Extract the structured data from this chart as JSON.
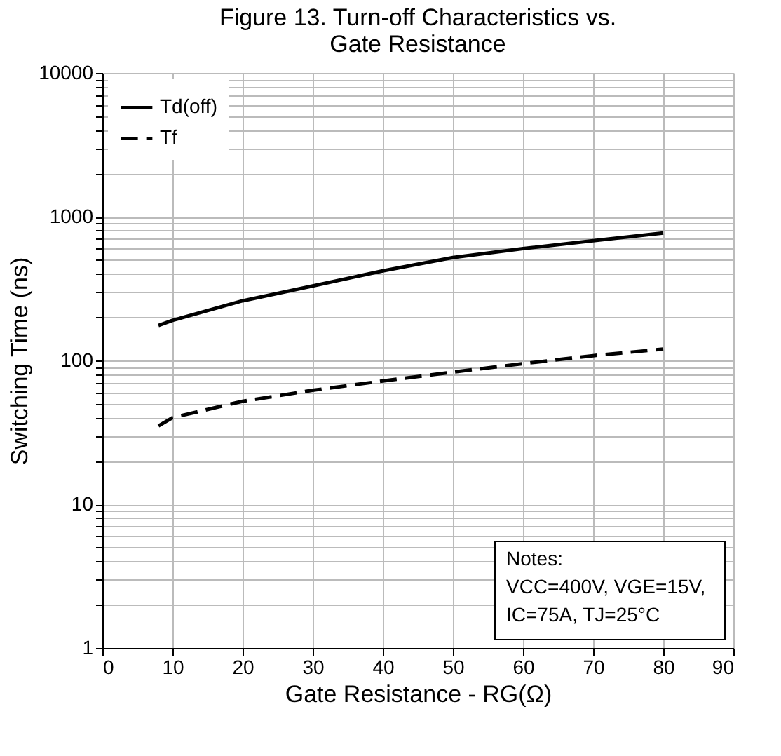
{
  "chart_data": {
    "type": "line",
    "title": "Figure 13. Turn-off Characteristics vs. Gate Resistance",
    "xlabel": "Gate Resistance - RG(Ω)",
    "ylabel": "Switching Time (ns)",
    "x": [
      8,
      10,
      20,
      30,
      40,
      50,
      60,
      70,
      80
    ],
    "series": [
      {
        "name": "Td(off)",
        "color": "#000000",
        "line_style": "solid",
        "values": [
          175,
          190,
          260,
          330,
          420,
          520,
          600,
          680,
          770
        ]
      },
      {
        "name": "Tf",
        "color": "#000000",
        "line_style": "dashed",
        "values": [
          35,
          40,
          52,
          62,
          72,
          83,
          95,
          108,
          120
        ]
      }
    ],
    "xlim": [
      0,
      90
    ],
    "xticks": [
      0,
      10,
      20,
      30,
      40,
      50,
      60,
      70,
      80,
      90
    ],
    "ylim": [
      1,
      10000
    ],
    "log": true,
    "yticks": [
      1,
      {
        "value": 2,
        "label": null
      },
      {
        "value": 3,
        "label": null
      },
      {
        "value": 4,
        "label": null
      },
      {
        "value": 5,
        "label": null
      },
      {
        "value": 6,
        "label": null
      },
      {
        "value": 7,
        "label": null
      },
      {
        "value": 8,
        "label": null
      },
      {
        "value": 9,
        "label": null
      },
      10,
      {
        "value": 20,
        "label": null
      },
      {
        "value": 30,
        "label": null
      },
      {
        "value": 40,
        "label": null
      },
      {
        "value": 50,
        "label": null
      },
      {
        "value": 60,
        "label": null
      },
      {
        "value": 70,
        "label": null
      },
      {
        "value": 80,
        "label": null
      },
      {
        "value": 90,
        "label": null
      },
      100,
      {
        "value": 200,
        "label": null
      },
      {
        "value": 300,
        "label": null
      },
      {
        "value": 400,
        "label": null
      },
      {
        "value": 500,
        "label": null
      },
      {
        "value": 600,
        "label": null
      },
      {
        "value": 700,
        "label": null
      },
      {
        "value": 800,
        "label": null
      },
      {
        "value": 900,
        "label": null
      },
      1000,
      {
        "value": 2000,
        "label": null
      },
      {
        "value": 3000,
        "label": null
      },
      {
        "value": 4000,
        "label": null
      },
      {
        "value": 5000,
        "label": null
      },
      {
        "value": 6000,
        "label": null
      },
      {
        "value": 7000,
        "label": null
      },
      {
        "value": 8000,
        "label": null
      },
      {
        "value": 9000,
        "label": null
      },
      10000
    ],
    "grid": true,
    "legend": "top left",
    "annotations": [
      "Notes:",
      "VCC=400V, VGE=15V,",
      "IC=75A, TJ=25°C"
    ]
  }
}
